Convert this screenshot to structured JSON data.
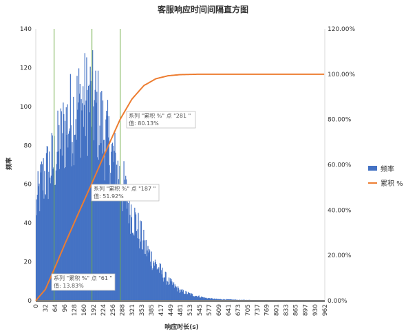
{
  "chart_data": {
    "type": "histogram-pareto",
    "title": "客服响应时间间隔直方图",
    "xlabel": "响应时长(s)",
    "ylabel": "频率",
    "y_left_ticks": [
      "0",
      "20",
      "40",
      "60",
      "80",
      "100",
      "120",
      "140"
    ],
    "y_left_range": [
      0,
      140
    ],
    "y_right_ticks": [
      "0.00%",
      "20.00%",
      "40.00%",
      "60.00%",
      "80.00%",
      "100.00%",
      "120.00%"
    ],
    "y_right_range": [
      0,
      1.2
    ],
    "x_range": [
      0,
      962
    ],
    "x_ticks": [
      "0",
      "32",
      "64",
      "96",
      "128",
      "160",
      "192",
      "224",
      "256",
      "288",
      "321",
      "353",
      "385",
      "417",
      "449",
      "481",
      "513",
      "545",
      "577",
      "609",
      "641",
      "673",
      "705",
      "737",
      "769",
      "801",
      "833",
      "865",
      "897",
      "930",
      "962"
    ],
    "bin_width": 2,
    "frequency_profile": {
      "points": [
        [
          0,
          48
        ],
        [
          20,
          62
        ],
        [
          60,
          72
        ],
        [
          100,
          90
        ],
        [
          140,
          100
        ],
        [
          180,
          103
        ],
        [
          200,
          98
        ],
        [
          240,
          80
        ],
        [
          280,
          62
        ],
        [
          320,
          45
        ],
        [
          360,
          28
        ],
        [
          400,
          18
        ],
        [
          440,
          10
        ],
        [
          480,
          5
        ],
        [
          520,
          3
        ],
        [
          560,
          1.5
        ],
        [
          600,
          0.8
        ],
        [
          680,
          0.4
        ],
        [
          960,
          0
        ]
      ],
      "noise_amplitude": 0.28
    },
    "cumulative_curve": {
      "points": [
        [
          0,
          0
        ],
        [
          32,
          0.05
        ],
        [
          61,
          0.1383
        ],
        [
          100,
          0.26
        ],
        [
          140,
          0.38
        ],
        [
          187,
          0.5192
        ],
        [
          240,
          0.68
        ],
        [
          281,
          0.8013
        ],
        [
          320,
          0.89
        ],
        [
          360,
          0.95
        ],
        [
          400,
          0.98
        ],
        [
          440,
          0.993
        ],
        [
          480,
          0.998
        ],
        [
          545,
          1.0
        ],
        [
          962,
          1.0
        ]
      ]
    },
    "markers": [
      {
        "x": 61,
        "series_label": "系列 \"累积 %\" 点 \"61 \"",
        "value_label": "值: 13.83%"
      },
      {
        "x": 187,
        "series_label": "系列 \"累积 %\" 点 \"187 \"",
        "value_label": "值: 51.92%"
      },
      {
        "x": 281,
        "series_label": "系列 \"累积 %\" 点 \"281 \"",
        "value_label": "值: 80.13%"
      }
    ],
    "legend": {
      "placement": "right",
      "items": [
        {
          "name": "频率",
          "kind": "bar"
        },
        {
          "name": "累积 %",
          "kind": "line"
        }
      ]
    },
    "colors": {
      "bar": "#4472c4",
      "line": "#ed7d31",
      "marker": "#70ad47",
      "axis": "#d9d9d9",
      "x_axis_bar": "#808080"
    }
  }
}
